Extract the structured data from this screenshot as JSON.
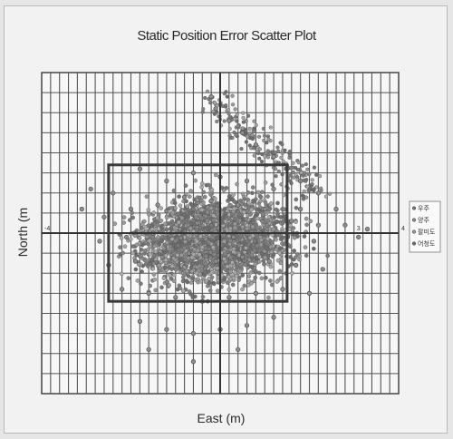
{
  "chart_data": {
    "type": "scatter",
    "title": "Static Position Error Scatter Plot",
    "xlabel": "East  (m)",
    "ylabel": "North  (m",
    "xlim": [
      -4,
      4
    ],
    "ylim": [
      -4,
      4
    ],
    "grid": true,
    "x_tick_labels": [
      {
        "value": -4,
        "label": "-4"
      },
      {
        "value": 3,
        "label": "3"
      },
      {
        "value": 4,
        "label": "4"
      }
    ],
    "legend_position": "right",
    "series": [
      {
        "name": "우주",
        "color": "#7a7a7a",
        "marker": "diamond"
      },
      {
        "name": "양주",
        "color": "#8a8a8a",
        "marker": "square"
      },
      {
        "name": "팔미도",
        "color": "#9a9a9a",
        "marker": "triangle"
      },
      {
        "name": "어청도",
        "color": "#6f6f6f",
        "marker": "x"
      }
    ],
    "points": [
      [
        -2.4,
        1.0
      ],
      [
        -1.8,
        1.6
      ],
      [
        -1.2,
        1.3
      ],
      [
        -0.6,
        1.5
      ],
      [
        0.0,
        1.4
      ],
      [
        0.6,
        1.3
      ],
      [
        1.2,
        1.1
      ],
      [
        1.8,
        0.6
      ],
      [
        -2.6,
        0.4
      ],
      [
        -2.0,
        0.6
      ],
      [
        -1.4,
        0.7
      ],
      [
        -0.8,
        0.9
      ],
      [
        -0.2,
        0.8
      ],
      [
        0.4,
        0.7
      ],
      [
        1.0,
        0.6
      ],
      [
        1.6,
        0.3
      ],
      [
        2.2,
        0.2
      ],
      [
        -2.7,
        -0.2
      ],
      [
        -2.1,
        -0.1
      ],
      [
        -1.5,
        0.0
      ],
      [
        -0.9,
        0.1
      ],
      [
        -0.3,
        0.0
      ],
      [
        0.3,
        -0.1
      ],
      [
        0.9,
        0.0
      ],
      [
        1.5,
        -0.1
      ],
      [
        2.1,
        -0.2
      ],
      [
        -2.5,
        -0.8
      ],
      [
        -1.9,
        -0.7
      ],
      [
        -1.3,
        -0.6
      ],
      [
        -0.7,
        -0.5
      ],
      [
        -0.1,
        -0.7
      ],
      [
        0.5,
        -0.6
      ],
      [
        1.1,
        -0.7
      ],
      [
        1.7,
        -0.8
      ],
      [
        2.3,
        -0.9
      ],
      [
        -2.2,
        -1.4
      ],
      [
        -1.6,
        -1.5
      ],
      [
        -1.0,
        -1.6
      ],
      [
        -0.4,
        -1.7
      ],
      [
        0.2,
        -1.6
      ],
      [
        0.8,
        -1.5
      ],
      [
        1.4,
        -1.4
      ],
      [
        2.0,
        -1.5
      ],
      [
        -1.8,
        -2.2
      ],
      [
        -1.2,
        -2.4
      ],
      [
        -0.6,
        -2.5
      ],
      [
        0.0,
        -2.4
      ],
      [
        0.6,
        -2.3
      ],
      [
        1.2,
        -2.1
      ],
      [
        -0.2,
        3.4
      ],
      [
        -0.1,
        3.1
      ],
      [
        0.2,
        2.8
      ],
      [
        0.5,
        2.5
      ],
      [
        0.8,
        2.2
      ],
      [
        1.2,
        1.9
      ],
      [
        1.5,
        1.6
      ],
      [
        1.8,
        1.3
      ],
      [
        2.2,
        1.0
      ],
      [
        2.6,
        0.6
      ],
      [
        2.8,
        0.2
      ],
      [
        3.1,
        -0.1
      ],
      [
        3.3,
        0.1
      ],
      [
        -3.1,
        0.6
      ],
      [
        -2.9,
        1.1
      ],
      [
        -1.6,
        -2.9
      ],
      [
        -0.6,
        -3.2
      ],
      [
        0.4,
        -2.9
      ]
    ]
  }
}
